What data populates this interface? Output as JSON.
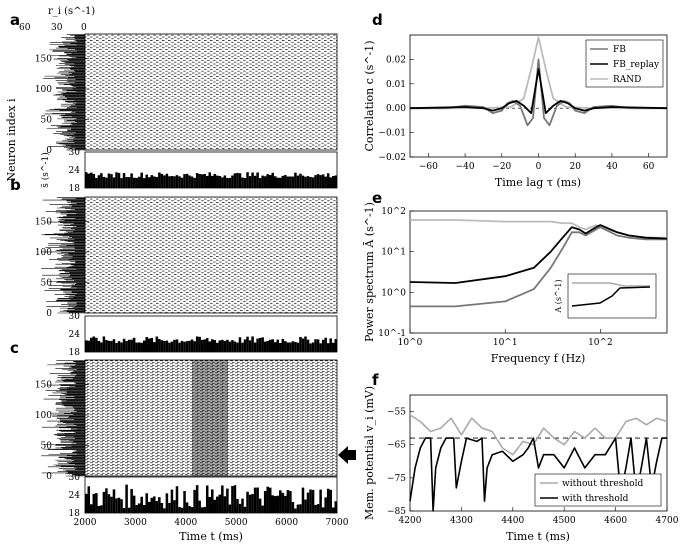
{
  "panel_labels": [
    "a",
    "b",
    "c",
    "d",
    "e",
    "f"
  ],
  "raster_panels": {
    "rate_axis_label": "r_i (s^-1)",
    "rate_ticks": [
      "60",
      "30",
      "0"
    ],
    "neuron_axis_label": "Neuron index i",
    "neuron_ticks": [
      "0",
      "50",
      "100",
      "150"
    ],
    "pop_rate_axis_label": "s̄ (s^-1)",
    "pop_rate_ticks": [
      "18",
      "24",
      "30"
    ],
    "time_ticks": [
      "2000",
      "3000",
      "4000",
      "5000",
      "6000",
      "7000"
    ],
    "time_axis_label": "Time t (ms)"
  },
  "chart_data": [
    {
      "panel": "a-b-c-histograms",
      "type": "bar",
      "x_range": [
        2000,
        7000
      ],
      "ylim": [
        18,
        30
      ],
      "series": [
        {
          "panel": "a",
          "mean": 22.3,
          "jitter": 1.0
        },
        {
          "panel": "b",
          "mean": 22.0,
          "jitter": 1.2
        },
        {
          "panel": "c",
          "mean": 23.5,
          "jitter": 4.0
        }
      ]
    },
    {
      "panel": "d",
      "type": "line",
      "xlabel": "Time lag τ (ms)",
      "ylabel": "Correlation c (s^-1)",
      "xlim": [
        -70,
        70
      ],
      "ylim": [
        -0.02,
        0.03
      ],
      "xticks": [
        -60,
        -40,
        -20,
        0,
        20,
        40,
        60
      ],
      "yticks": [
        -0.02,
        -0.01,
        0.0,
        0.01,
        0.02
      ],
      "legend": "top-right",
      "series": [
        {
          "name": "FB",
          "color": "#777777",
          "x": [
            -70,
            -50,
            -40,
            -30,
            -25,
            -20,
            -17,
            -14,
            -10,
            -6,
            -3,
            0,
            3,
            6,
            10,
            14,
            17,
            20,
            25,
            30,
            40,
            50,
            70
          ],
          "y": [
            0,
            0,
            0.001,
            0.0005,
            -0.002,
            -0.001,
            0.002,
            0.003,
            0.001,
            -0.007,
            -0.004,
            0.02,
            -0.004,
            -0.007,
            0.001,
            0.003,
            0.002,
            -0.001,
            -0.002,
            0.0005,
            0.001,
            0,
            0
          ]
        },
        {
          "name": "FB_replay",
          "color": "#000000",
          "x": [
            -70,
            -40,
            -30,
            -25,
            -20,
            -16,
            -12,
            -8,
            -4,
            0,
            4,
            8,
            12,
            16,
            20,
            25,
            30,
            40,
            70
          ],
          "y": [
            0,
            0.0005,
            0,
            -0.001,
            0,
            0.002,
            0.003,
            0.001,
            -0.002,
            0.016,
            -0.002,
            0.001,
            0.003,
            0.002,
            0,
            -0.001,
            0,
            0.0005,
            0
          ]
        },
        {
          "name": "RAND",
          "color": "#bbbbbb",
          "x": [
            -70,
            -30,
            -15,
            -8,
            -4,
            0,
            4,
            8,
            15,
            30,
            70
          ],
          "y": [
            0,
            0,
            0.0005,
            0.004,
            0.016,
            0.029,
            0.016,
            0.004,
            0.0005,
            0,
            0
          ]
        }
      ]
    },
    {
      "panel": "e",
      "type": "line",
      "xlabel": "Frequency f (Hz)",
      "ylabel": "Power spectrum Ā (s^-1)",
      "xscale": "log",
      "yscale": "log",
      "xlim": [
        1,
        500
      ],
      "ylim": [
        0.1,
        100
      ],
      "xticks": [
        "10^0",
        "10^1",
        "10^2"
      ],
      "yticks": [
        "10^-1",
        "10^0",
        "10^1",
        "10^2"
      ],
      "series": [
        {
          "color": "#777777",
          "x": [
            1,
            3,
            10,
            20,
            30,
            40,
            50,
            60,
            70,
            90,
            100,
            150,
            200,
            300,
            500
          ],
          "y": [
            0.45,
            0.45,
            0.6,
            1.2,
            4,
            12,
            30,
            30,
            25,
            35,
            40,
            25,
            22,
            20,
            20
          ]
        },
        {
          "color": "#000000",
          "x": [
            1,
            3,
            10,
            20,
            30,
            40,
            50,
            60,
            70,
            90,
            100,
            150,
            200,
            300,
            500
          ],
          "y": [
            1.8,
            1.7,
            2.5,
            4,
            10,
            22,
            40,
            35,
            28,
            40,
            45,
            30,
            25,
            22,
            21
          ]
        },
        {
          "color": "#bbbbbb",
          "x": [
            1,
            3,
            10,
            20,
            30,
            40,
            50,
            60,
            70,
            90,
            100,
            150,
            200,
            300,
            500
          ],
          "y": [
            60,
            60,
            55,
            55,
            55,
            50,
            50,
            40,
            35,
            45,
            40,
            30,
            25,
            22,
            22
          ]
        }
      ],
      "inset_ylabel": "A (s^-1)"
    },
    {
      "panel": "f",
      "type": "line",
      "xlabel": "Time t (ms)",
      "ylabel": "Mem. potential v_i (mV)",
      "xlim": [
        4200,
        4700
      ],
      "ylim": [
        -85,
        -50
      ],
      "xticks": [
        4200,
        4300,
        4400,
        4500,
        4600,
        4700
      ],
      "yticks": [
        -55,
        -65,
        -75,
        -85
      ],
      "threshold": -63,
      "legend": "bottom-right",
      "series": [
        {
          "name": "without threshold",
          "color": "#aaaaaa",
          "x": [
            4200,
            4220,
            4240,
            4260,
            4280,
            4300,
            4320,
            4340,
            4360,
            4380,
            4400,
            4420,
            4440,
            4460,
            4480,
            4500,
            4520,
            4540,
            4560,
            4580,
            4600,
            4620,
            4640,
            4660,
            4680,
            4700
          ],
          "y": [
            -56,
            -58,
            -61,
            -60,
            -57,
            -62,
            -57,
            -60,
            -61,
            -66,
            -68,
            -64,
            -65,
            -60,
            -63,
            -65,
            -61,
            -63,
            -60,
            -63,
            -63,
            -58,
            -57,
            -59,
            -57,
            -58
          ]
        },
        {
          "name": "with threshold",
          "color": "#000000",
          "x": [
            4200,
            4210,
            4220,
            4230,
            4240,
            4245,
            4250,
            4260,
            4270,
            4285,
            4290,
            4300,
            4310,
            4330,
            4340,
            4345,
            4350,
            4360,
            4380,
            4400,
            4420,
            4430,
            4440,
            4450,
            4460,
            4480,
            4500,
            4520,
            4540,
            4560,
            4580,
            4600,
            4610,
            4620,
            4630,
            4640,
            4650,
            4660,
            4670,
            4680,
            4690,
            4700
          ],
          "y": [
            -82,
            -72,
            -66,
            -63,
            -63,
            -85,
            -72,
            -66,
            -63,
            -63,
            -78,
            -70,
            -63,
            -64,
            -63,
            -82,
            -72,
            -68,
            -67,
            -70,
            -68,
            -66,
            -63,
            -72,
            -68,
            -68,
            -72,
            -66,
            -72,
            -68,
            -68,
            -63,
            -80,
            -72,
            -63,
            -80,
            -72,
            -63,
            -78,
            -70,
            -63,
            -63
          ]
        }
      ]
    }
  ]
}
